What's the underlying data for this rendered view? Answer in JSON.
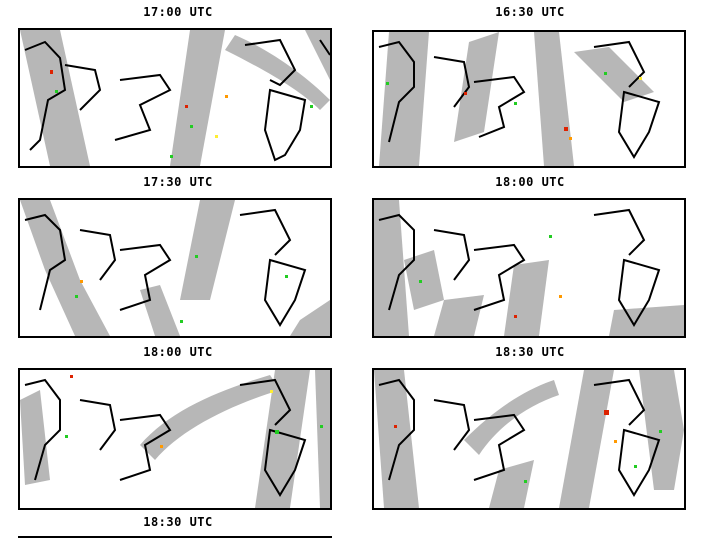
{
  "panels": [
    {
      "id": "p1",
      "title": "17:00 UTC"
    },
    {
      "id": "p2",
      "title": "16:30 UTC"
    },
    {
      "id": "p3",
      "title": "17:30 UTC"
    },
    {
      "id": "p4",
      "title": "18:00 UTC"
    },
    {
      "id": "p5",
      "title": "18:00 UTC"
    },
    {
      "id": "p6",
      "title": "18:30 UTC"
    }
  ],
  "footer": {
    "title": "18:30 UTC"
  },
  "colors": {
    "swath": "#b7b7b7",
    "coast": "#000000",
    "green": "#22cc22",
    "orange": "#ff9900",
    "red": "#dd2200",
    "yellow": "#ffee33"
  }
}
